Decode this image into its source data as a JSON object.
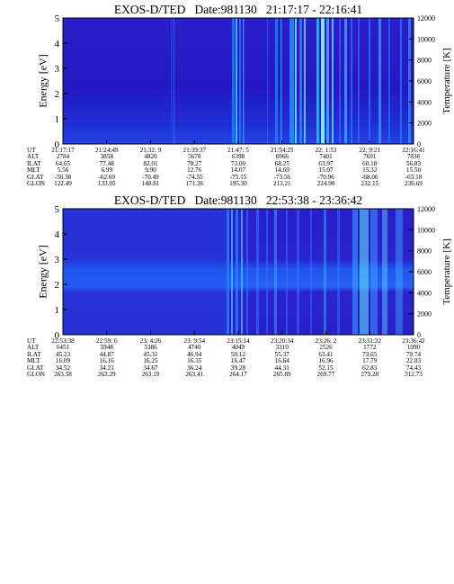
{
  "chart_data": [
    {
      "type": "heatmap",
      "title": "EXOS-D/TED   Date:981130   21:17:17 - 22:16:41",
      "ylabel": "Energy [eV]",
      "ylabel_right": "Temperature [K]",
      "ylim": [
        0,
        5
      ],
      "ylim_right": [
        0,
        12000
      ],
      "y_ticks": [
        "0",
        "1",
        "2",
        "3",
        "4",
        "5"
      ],
      "y_ticks_right": [
        "0",
        "2000",
        "4000",
        "6000",
        "8000",
        "10000",
        "12000"
      ],
      "orbit_labels": [
        "UT",
        "ALT",
        "ILAT",
        "MLT",
        "GLAT",
        "GLON"
      ],
      "orbit_columns": [
        [
          "21:17:17",
          "2784",
          "64.65",
          "5.56",
          "-50.38",
          "122.49"
        ],
        [
          "21:24:49",
          "3858",
          "77.48",
          "6.99",
          "-62.69",
          "133.05"
        ],
        [
          "21:32: 9",
          "4820",
          "82.01",
          "9.90",
          "-70.49",
          "148.81"
        ],
        [
          "21:39:37",
          "5678",
          "78.27",
          "12.76",
          "-74.55",
          "171.36"
        ],
        [
          "21:47: 5",
          "6398",
          "73.00",
          "14.07",
          "-75.15",
          "195.30"
        ],
        [
          "21:54:25",
          "6966",
          "68.25",
          "14.69",
          "-73.56",
          "213.21"
        ],
        [
          "22: 1:53",
          "7401",
          "63.97",
          "15.07",
          "-70.96",
          "224.90"
        ],
        [
          "22: 9:21",
          "7691",
          "60.18",
          "15.32",
          "-68.06",
          "232.15"
        ],
        [
          "22:16:41",
          "7836",
          "56.83",
          "15.50",
          "-65.18",
          "236.69"
        ]
      ]
    },
    {
      "type": "heatmap",
      "title": "EXOS-D/TED   Date:981130   22:53:38 - 23:36:42",
      "ylabel": "Energy [eV]",
      "ylabel_right": "Temperature [K]",
      "ylim": [
        0,
        5
      ],
      "ylim_right": [
        0,
        12000
      ],
      "y_ticks": [
        "0",
        "1",
        "2",
        "3",
        "4",
        "5"
      ],
      "y_ticks_right": [
        "0",
        "2000",
        "4000",
        "6000",
        "8000",
        "10000",
        "12000"
      ],
      "orbit_labels": [
        "UT",
        "ALT",
        "ILAT",
        "MLT",
        "GLAT",
        "GLON"
      ],
      "orbit_columns": [
        [
          "22:53:38",
          "6451",
          "45.23",
          "16.09",
          "34.52",
          "263.58"
        ],
        [
          "22:59: 6",
          "5948",
          "44.87",
          "16.16",
          "34.21",
          "263.29"
        ],
        [
          "23: 4:26",
          "5386",
          "45.31",
          "16.25",
          "34.67",
          "263.19"
        ],
        [
          "23: 9:54",
          "4740",
          "46.94",
          "16.35",
          "36.24",
          "263.41"
        ],
        [
          "23:15:14",
          "4049",
          "50.12",
          "16.47",
          "39.28",
          "264.17"
        ],
        [
          "23:20:34",
          "3310",
          "55.37",
          "16.64",
          "44.31",
          "265.89"
        ],
        [
          "23:26: 2",
          "2526",
          "63.41",
          "16.96",
          "52.15",
          "269.77"
        ],
        [
          "23:31:22",
          "1772",
          "73.65",
          "17.79",
          "62.83",
          "279.28"
        ],
        [
          "23:36:42",
          "1090",
          "79.74",
          "22.83",
          "74.43",
          "312.73"
        ]
      ]
    }
  ]
}
